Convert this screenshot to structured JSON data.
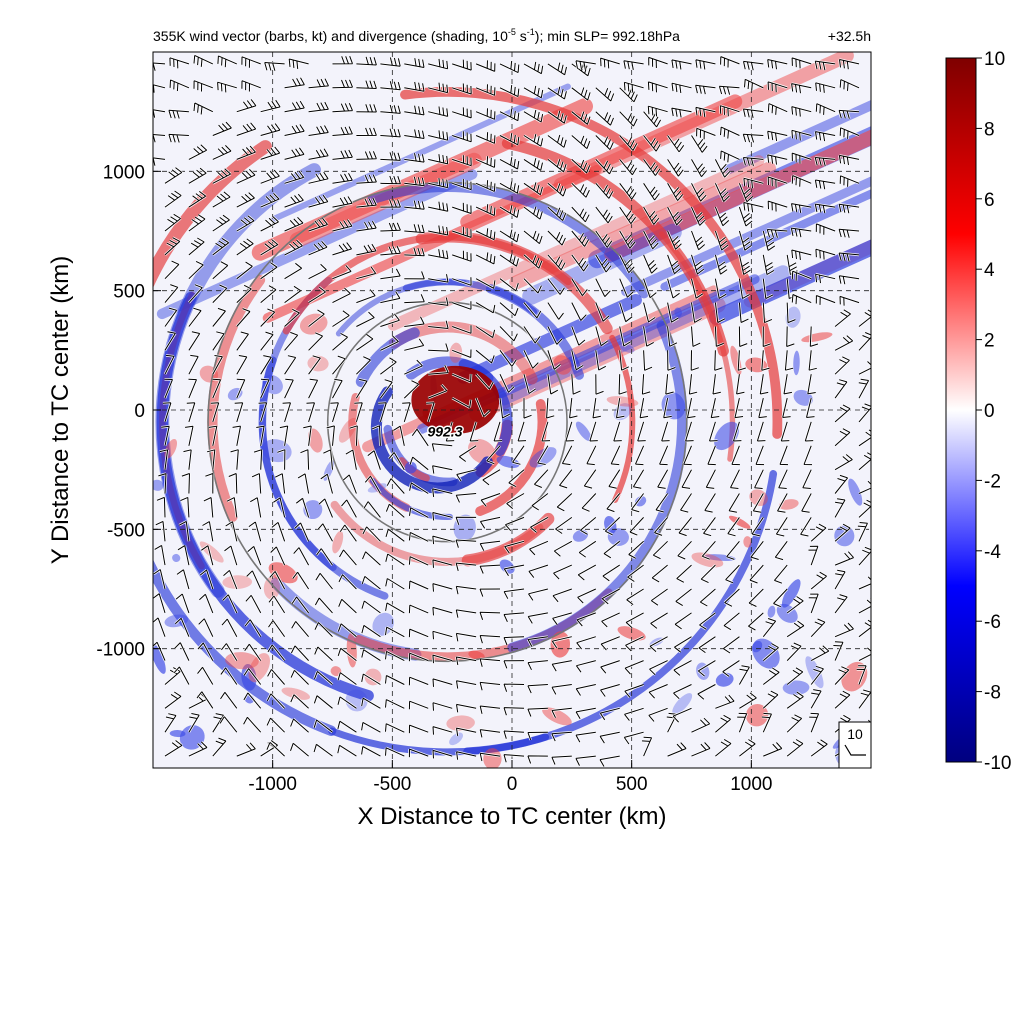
{
  "chart_data": {
    "type": "heatmap",
    "title_main": "355K wind vector (barbs, kt) and divergence (shading, 10",
    "title_exp1": "-5",
    "title_mid": " s",
    "title_exp2": "-1",
    "title_tail": "); min SLP= 992.18hPa",
    "forecast_hour": "+32.5h",
    "xlabel": "X Distance to TC center (km)",
    "ylabel": "Y Distance to TC center (km)",
    "xlim": [
      -1500,
      1500
    ],
    "ylim": [
      -1500,
      1500
    ],
    "xticks": [
      -1000,
      -500,
      0,
      500,
      1000
    ],
    "yticks": [
      -1000,
      -500,
      0,
      500,
      1000
    ],
    "xtick_labels": [
      "-1000",
      "-500",
      "0",
      "500",
      "1000"
    ],
    "ytick_labels": [
      "-1000",
      "-500",
      "0",
      "500",
      "1000"
    ],
    "gridlines": true,
    "range_rings_km": [
      500,
      1000
    ],
    "ring_center_km": [
      -270,
      -50
    ],
    "center_label": "992.3",
    "center_label_pos_km": [
      -280,
      -90
    ],
    "colorbar": {
      "min": -10,
      "max": 10,
      "ticks": [
        10,
        8,
        6,
        4,
        2,
        0,
        -2,
        -4,
        -6,
        -8,
        -10
      ],
      "tick_labels": [
        "10",
        "8",
        "6",
        "4",
        "2",
        "0",
        "-2",
        "-4",
        "-6",
        "-8",
        "-10"
      ],
      "colors": [
        "#00007f",
        "#0000ff",
        "#ffffff",
        "#ff0000",
        "#7f0000"
      ]
    },
    "barb_reference": {
      "label": "10",
      "speed_kt": 10
    },
    "barb_spacing_km": 100
  }
}
